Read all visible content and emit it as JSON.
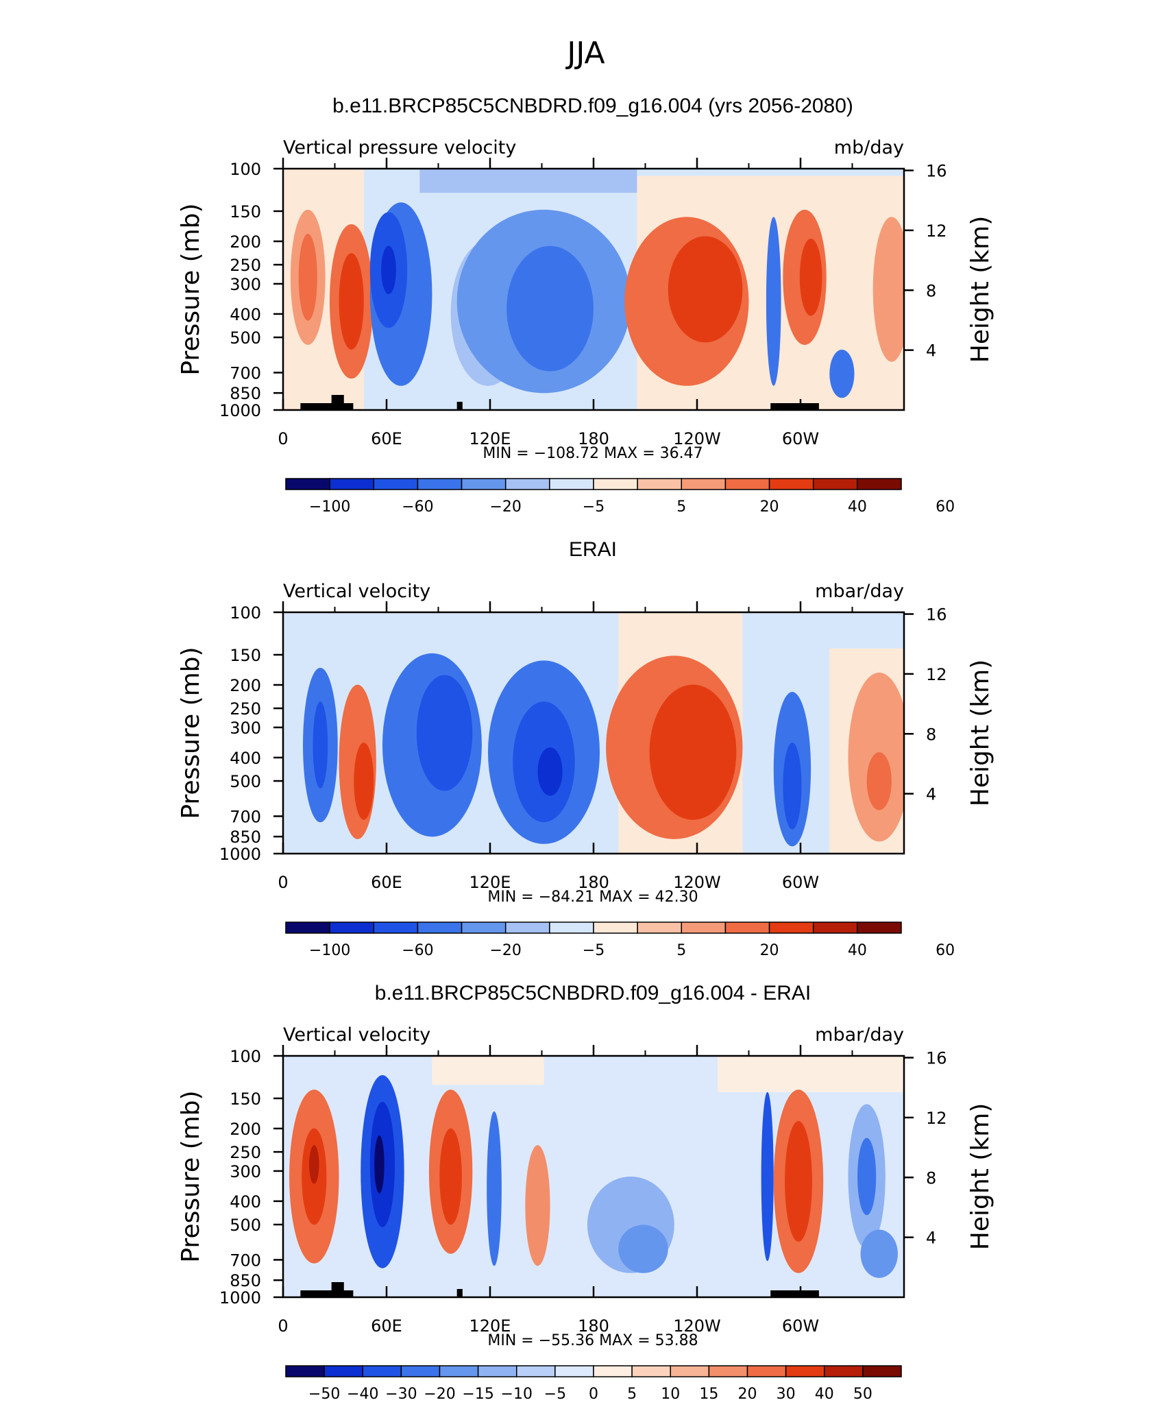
{
  "figure": {
    "title": "JJA"
  },
  "colors": {
    "scale12": [
      "#08086c",
      "#0b2fd1",
      "#1f53e6",
      "#3b74ea",
      "#6596ee",
      "#a6c2f4",
      "#d6e7fb",
      "#fde9d8",
      "#f9c2a6",
      "#f59b78",
      "#ef6c44",
      "#e43c12",
      "#b51e07",
      "#7a0b03"
    ],
    "scale16": [
      "#08086c",
      "#0b2fd1",
      "#1f53e6",
      "#3b74ea",
      "#6596ee",
      "#8fb2f2",
      "#b8d0f7",
      "#dce9fc",
      "#fdeee2",
      "#fbd3bd",
      "#f7b396",
      "#f38e6a",
      "#ef6c44",
      "#e43c12",
      "#b51e07",
      "#7a0b03"
    ]
  },
  "chart_data": [
    {
      "type": "heatmap",
      "title": "b.e11.BRCP85C5CNBDRD.f09_g16.004 (yrs 2056-2080)",
      "variable": "Vertical pressure velocity",
      "units": "mb/day",
      "xlabel": "",
      "ylabel": "Pressure (mb)",
      "y2label": "Height (km)",
      "x_ticks": [
        "0",
        "60E",
        "120E",
        "180",
        "120W",
        "60W"
      ],
      "y_ticks": [
        "100",
        "150",
        "200",
        "250",
        "300",
        "400",
        "500",
        "700",
        "850",
        "1000"
      ],
      "y2_ticks": [
        "16",
        "12",
        "8",
        "4"
      ],
      "xlim": [
        0,
        360
      ],
      "ylim": [
        1000,
        100
      ],
      "y_scale": "log",
      "stats_text": "MIN = −108.72   MAX =   36.47",
      "stats": {
        "min": -108.72,
        "max": 36.47
      },
      "colorbar_labels": [
        "−100",
        "−60",
        "−20",
        "−5",
        "5",
        "20",
        "40",
        "60"
      ],
      "levels": [
        -100,
        -80,
        -60,
        -40,
        -20,
        -10,
        -5,
        0,
        5,
        10,
        20,
        30,
        40,
        50,
        60
      ],
      "colorbar_extends": "both",
      "grid": false
    },
    {
      "type": "heatmap",
      "title": "ERAI",
      "variable": "Vertical velocity",
      "units": "mbar/day",
      "xlabel": "",
      "ylabel": "Pressure (mb)",
      "y2label": "Height (km)",
      "x_ticks": [
        "0",
        "60E",
        "120E",
        "180",
        "120W",
        "60W"
      ],
      "y_ticks": [
        "100",
        "150",
        "200",
        "250",
        "300",
        "400",
        "500",
        "700",
        "850",
        "1000"
      ],
      "y2_ticks": [
        "16",
        "12",
        "8",
        "4"
      ],
      "xlim": [
        0,
        360
      ],
      "ylim": [
        1000,
        100
      ],
      "y_scale": "log",
      "stats_text": "MIN = −84.21   MAX =   42.30",
      "stats": {
        "min": -84.21,
        "max": 42.3
      },
      "colorbar_labels": [
        "−100",
        "−60",
        "−20",
        "−5",
        "5",
        "20",
        "40",
        "60"
      ],
      "levels": [
        -100,
        -80,
        -60,
        -40,
        -20,
        -10,
        -5,
        0,
        5,
        10,
        20,
        30,
        40,
        50,
        60
      ],
      "colorbar_extends": "both",
      "grid": false
    },
    {
      "type": "heatmap",
      "title": "b.e11.BRCP85C5CNBDRD.f09_g16.004 - ERAI",
      "variable": "Vertical velocity",
      "units": "mbar/day",
      "xlabel": "",
      "ylabel": "Pressure (mb)",
      "y2label": "Height (km)",
      "x_ticks": [
        "0",
        "60E",
        "120E",
        "180",
        "120W",
        "60W"
      ],
      "y_ticks": [
        "100",
        "150",
        "200",
        "250",
        "300",
        "400",
        "500",
        "700",
        "850",
        "1000"
      ],
      "y2_ticks": [
        "16",
        "12",
        "8",
        "4"
      ],
      "xlim": [
        0,
        360
      ],
      "ylim": [
        1000,
        100
      ],
      "y_scale": "log",
      "stats_text": "MIN = −55.36   MAX =   53.88",
      "stats": {
        "min": -55.36,
        "max": 53.88
      },
      "colorbar_labels": [
        "−50",
        "−40",
        "−30",
        "−20",
        "−15",
        "−10",
        "−5",
        "0",
        "5",
        "10",
        "15",
        "20",
        "30",
        "40",
        "50"
      ],
      "levels": [
        -50,
        -40,
        -30,
        -20,
        -15,
        -10,
        -5,
        0,
        5,
        10,
        15,
        20,
        30,
        40,
        50
      ],
      "colorbar_extends": "both",
      "grid": false
    }
  ]
}
